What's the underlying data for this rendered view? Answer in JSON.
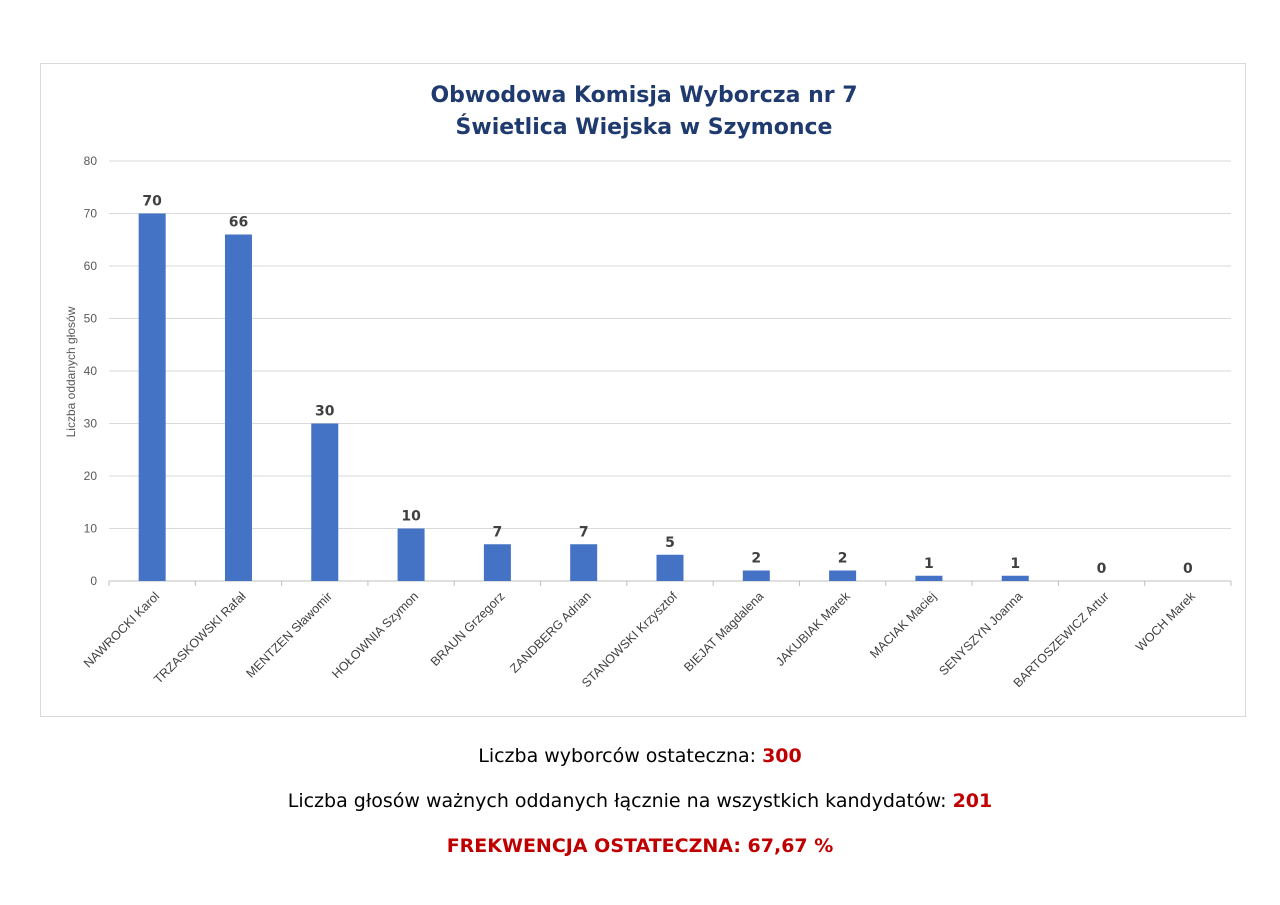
{
  "chart_data": {
    "type": "bar",
    "title": [
      "Obwodowa Komisja Wyborcza nr 7",
      "Świetlica Wiejska w Szymonce"
    ],
    "ylabel": "Liczba oddanych głosów",
    "xlabel": "",
    "ylim": [
      0,
      80
    ],
    "yticks": [
      0,
      10,
      20,
      30,
      40,
      50,
      60,
      70,
      80
    ],
    "grid": true,
    "categories": [
      "NAWROCKI Karol",
      "TRZASKOWSKI Rafał",
      "MENTZEN Sławomir",
      "HOŁOWNIA Szymon",
      "BRAUN Grzegorz",
      "ZANDBERG Adrian",
      "STANOWSKI Krzysztof",
      "BIEJAT Magdalena",
      "JAKUBIAK Marek",
      "MACIAK Maciej",
      "SENYSZYN Joanna",
      "BARTOSZEWICZ Artur",
      "WOCH Marek"
    ],
    "values": [
      70,
      66,
      30,
      10,
      7,
      7,
      5,
      2,
      2,
      1,
      1,
      0,
      0
    ],
    "bar_color": "#4472c4"
  },
  "summary": {
    "voters_label": "Liczba wyborców ostateczna: ",
    "voters_value": "300",
    "valid_votes_label": "Liczba głosów ważnych oddanych łącznie na wszystkich kandydatów: ",
    "valid_votes_value": "201",
    "turnout_text": "FREKWENCJA OSTATECZNA: 67,67 %"
  }
}
